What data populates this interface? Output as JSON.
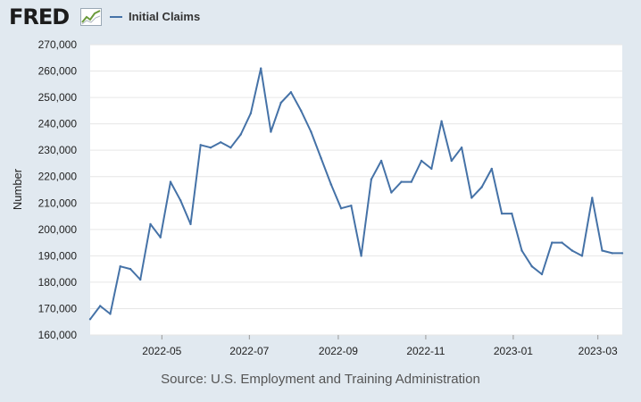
{
  "header": {
    "logo": "FRED",
    "logo_icon": "trend-chart-icon",
    "legend_label": "Initial Claims"
  },
  "source": "Source: U.S. Employment and Training Administration",
  "colors": {
    "background": "#e1e9f0",
    "plot_background": "#ffffff",
    "series": "#4572a7",
    "grid": "#e6e6e6"
  },
  "chart_data": {
    "type": "line",
    "title": "",
    "xlabel": "",
    "ylabel": "Number",
    "grid": true,
    "legend": "top-left",
    "xlim": [
      "2022-03-12",
      "2023-03-18"
    ],
    "ylim": [
      160000,
      270000
    ],
    "y_ticks": [
      160000,
      170000,
      180000,
      190000,
      200000,
      210000,
      220000,
      230000,
      240000,
      250000,
      260000,
      270000
    ],
    "y_tick_labels": [
      "160,000",
      "170,000",
      "180,000",
      "190,000",
      "200,000",
      "210,000",
      "220,000",
      "230,000",
      "240,000",
      "250,000",
      "260,000",
      "270,000"
    ],
    "x_ticks": [
      "2022-05-01",
      "2022-07-01",
      "2022-09-01",
      "2022-11-01",
      "2023-01-01",
      "2023-03-01"
    ],
    "x_tick_labels": [
      "2022-05",
      "2022-07",
      "2022-09",
      "2022-11",
      "2023-01",
      "2023-03"
    ],
    "series": [
      {
        "name": "Initial Claims",
        "x": [
          "2022-03-12",
          "2022-03-19",
          "2022-03-26",
          "2022-04-02",
          "2022-04-09",
          "2022-04-16",
          "2022-04-23",
          "2022-04-30",
          "2022-05-07",
          "2022-05-14",
          "2022-05-21",
          "2022-05-28",
          "2022-06-04",
          "2022-06-11",
          "2022-06-18",
          "2022-06-25",
          "2022-07-02",
          "2022-07-09",
          "2022-07-16",
          "2022-07-23",
          "2022-07-30",
          "2022-08-06",
          "2022-08-13",
          "2022-08-20",
          "2022-08-27",
          "2022-09-03",
          "2022-09-10",
          "2022-09-17",
          "2022-09-24",
          "2022-10-01",
          "2022-10-08",
          "2022-10-15",
          "2022-10-22",
          "2022-10-29",
          "2022-11-05",
          "2022-11-12",
          "2022-11-19",
          "2022-11-26",
          "2022-12-03",
          "2022-12-10",
          "2022-12-17",
          "2022-12-24",
          "2022-12-31",
          "2023-01-07",
          "2023-01-14",
          "2023-01-21",
          "2023-01-28",
          "2023-02-04",
          "2023-02-11",
          "2023-02-18",
          "2023-02-25",
          "2023-03-04",
          "2023-03-11",
          "2023-03-18"
        ],
        "values": [
          166000,
          171000,
          168000,
          186000,
          185000,
          181000,
          202000,
          197000,
          218000,
          211000,
          202000,
          232000,
          231000,
          233000,
          231000,
          236000,
          244000,
          261000,
          237000,
          248000,
          252000,
          245000,
          237000,
          227000,
          217000,
          208000,
          209000,
          190000,
          219000,
          226000,
          214000,
          218000,
          218000,
          226000,
          223000,
          241000,
          226000,
          231000,
          212000,
          216000,
          223000,
          206000,
          206000,
          192000,
          186000,
          183000,
          195000,
          195000,
          192000,
          190000,
          212000,
          192000,
          191000,
          191000
        ]
      }
    ]
  }
}
